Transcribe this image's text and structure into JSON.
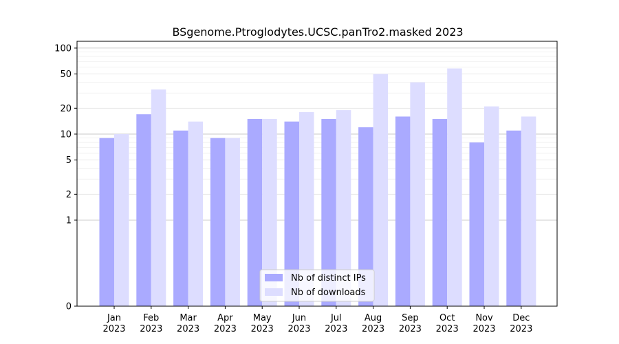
{
  "chart_data": {
    "type": "bar",
    "title": "BSgenome.Ptroglodytes.UCSC.panTro2.masked 2023",
    "xlabel": "",
    "ylabel": "",
    "y_scale": "symlog",
    "ylim": [
      0,
      120
    ],
    "y_ticks": [
      0,
      1,
      2,
      5,
      10,
      20,
      50,
      100
    ],
    "y_tick_labels": [
      "0",
      "1",
      "2",
      "5",
      "10",
      "20",
      "50",
      "100"
    ],
    "grid": "horizontal",
    "legend_position": "bottom-center",
    "categories": [
      "Jan",
      "Feb",
      "Mar",
      "Apr",
      "May",
      "Jun",
      "Jul",
      "Aug",
      "Sep",
      "Oct",
      "Nov",
      "Dec"
    ],
    "category_sublabel": "2023",
    "series": [
      {
        "name": "Nb of distinct IPs",
        "color": "#aaaaff",
        "values": [
          9,
          17,
          11,
          9,
          15,
          14,
          15,
          12,
          16,
          15,
          8,
          11
        ]
      },
      {
        "name": "Nb of downloads",
        "color": "#ddddff",
        "values": [
          10,
          33,
          14,
          9,
          15,
          18,
          19,
          50,
          40,
          58,
          21,
          16
        ]
      }
    ]
  }
}
